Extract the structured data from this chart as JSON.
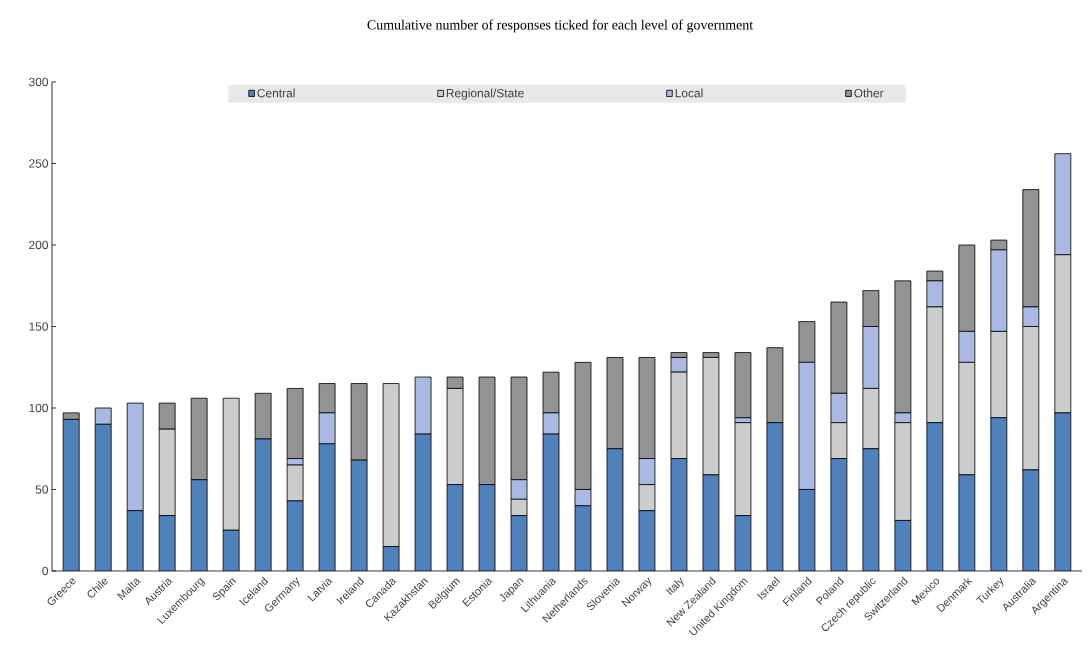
{
  "chart_data": {
    "type": "bar",
    "stacked": true,
    "title": "Cumulative number of responses ticked for each level of government",
    "categories": [
      "Greece",
      "Chile",
      "Malta",
      "Austria",
      "Luxembourg",
      "Spain",
      "Iceland",
      "Germany",
      "Latvia",
      "Ireland",
      "Canada",
      "Kazakhstan",
      "Belgium",
      "Estonia",
      "Japan",
      "Lithuania",
      "Netherlands",
      "Slovenia",
      "Norway",
      "Italy",
      "New Zealand",
      "United Kingdom",
      "Israel",
      "Finland",
      "Poland",
      "Czech republic",
      "Switzerland",
      "Mexico",
      "Denmark",
      "Turkey",
      "Australia",
      "Argentina"
    ],
    "series": [
      {
        "name": "Central",
        "color": "#4f81bd",
        "values": [
          93,
          90,
          37,
          34,
          56,
          25,
          81,
          43,
          78,
          68,
          15,
          84,
          53,
          53,
          34,
          84,
          40,
          75,
          37,
          69,
          59,
          34,
          91,
          50,
          69,
          75,
          31,
          91,
          59,
          94,
          62,
          97
        ]
      },
      {
        "name": "Regional/State",
        "color": "#cccccc",
        "values": [
          0,
          0,
          0,
          53,
          0,
          81,
          0,
          22,
          0,
          0,
          100,
          0,
          59,
          0,
          10,
          0,
          0,
          0,
          16,
          53,
          72,
          57,
          0,
          0,
          22,
          37,
          60,
          71,
          69,
          53,
          88,
          97
        ]
      },
      {
        "name": "Local",
        "color": "#a9b9e3",
        "values": [
          0,
          10,
          66,
          0,
          0,
          0,
          0,
          4,
          19,
          0,
          0,
          35,
          0,
          0,
          12,
          13,
          10,
          0,
          16,
          9,
          0,
          3,
          0,
          78,
          18,
          38,
          6,
          16,
          19,
          50,
          12,
          62
        ]
      },
      {
        "name": "Other",
        "color": "#939393",
        "values": [
          4,
          0,
          0,
          16,
          50,
          0,
          28,
          43,
          18,
          47,
          0,
          0,
          7,
          66,
          63,
          25,
          78,
          56,
          62,
          3,
          3,
          40,
          46,
          25,
          56,
          22,
          81,
          6,
          53,
          6,
          72,
          0
        ]
      }
    ],
    "ylim": [
      0,
      300
    ],
    "yticks": [
      0,
      50,
      100,
      150,
      200,
      250,
      300
    ],
    "legend": "top",
    "grid": false
  }
}
